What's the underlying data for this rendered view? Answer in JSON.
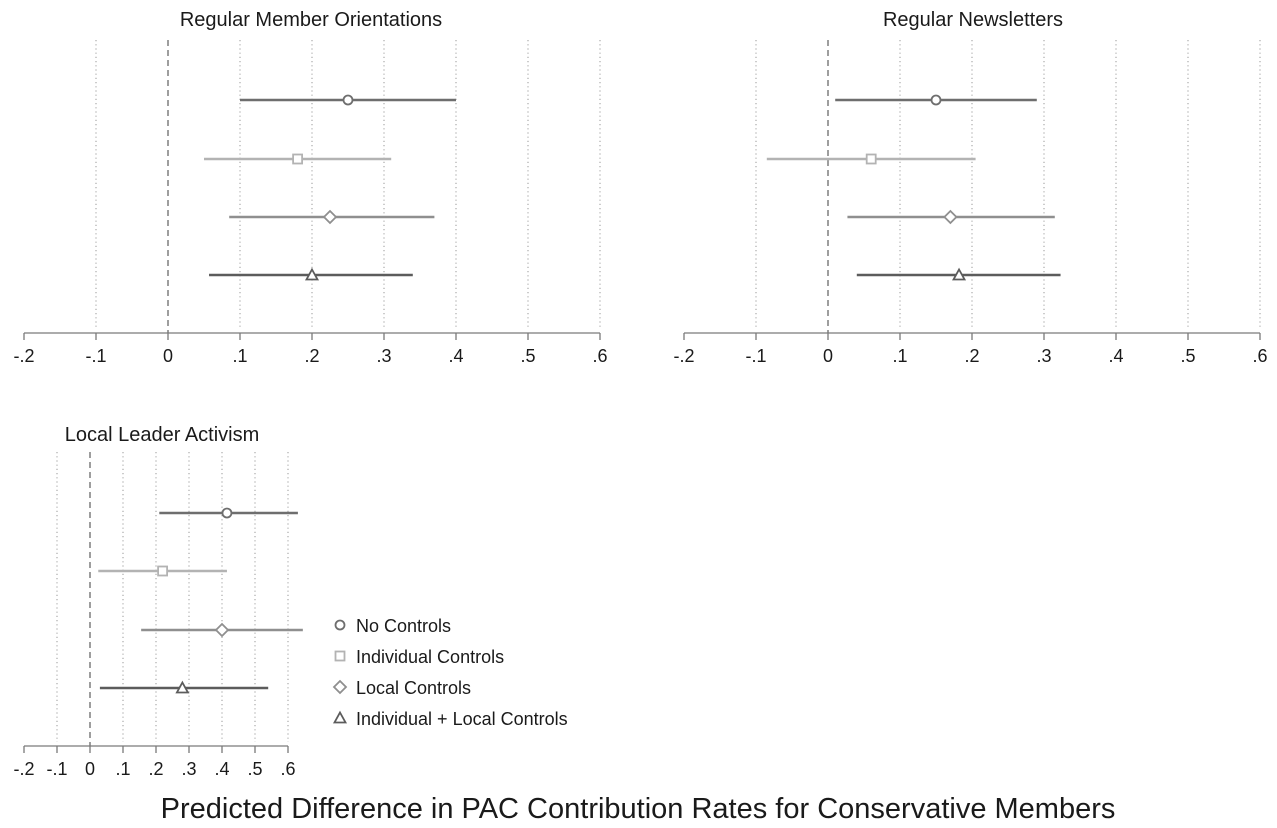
{
  "figure_title": "Predicted Difference in PAC Contribution Rates for Conservative Members",
  "legend": [
    {
      "label": "No Controls",
      "marker": "circle",
      "color": "#6e6e6e"
    },
    {
      "label": "Individual Controls",
      "marker": "square",
      "color": "#b3b3b3"
    },
    {
      "label": "Local Controls",
      "marker": "diamond",
      "color": "#8f8f8f"
    },
    {
      "label": "Individual + Local Controls",
      "marker": "triangle",
      "color": "#5c5c5c"
    }
  ],
  "chart_data": [
    {
      "type": "scatter",
      "title": "Regular Member Orientations",
      "xlim": [
        -0.2,
        0.6
      ],
      "ticks": [
        "-.2",
        "-.1",
        "0",
        ".1",
        ".2",
        ".3",
        ".4",
        ".5",
        ".6"
      ],
      "reference_line": 0,
      "grid": "vertical dotted",
      "series": [
        {
          "name": "No Controls",
          "estimate": 0.25,
          "ci": [
            0.1,
            0.4
          ]
        },
        {
          "name": "Individual Controls",
          "estimate": 0.18,
          "ci": [
            0.05,
            0.31
          ]
        },
        {
          "name": "Local Controls",
          "estimate": 0.225,
          "ci": [
            0.085,
            0.37
          ]
        },
        {
          "name": "Individual + Local Controls",
          "estimate": 0.2,
          "ci": [
            0.057,
            0.34
          ]
        }
      ]
    },
    {
      "type": "scatter",
      "title": "Regular Newsletters",
      "xlim": [
        -0.2,
        0.6
      ],
      "ticks": [
        "-.2",
        "-.1",
        "0",
        ".1",
        ".2",
        ".3",
        ".4",
        ".5",
        ".6"
      ],
      "reference_line": 0,
      "grid": "vertical dotted",
      "series": [
        {
          "name": "No Controls",
          "estimate": 0.15,
          "ci": [
            0.01,
            0.29
          ]
        },
        {
          "name": "Individual Controls",
          "estimate": 0.06,
          "ci": [
            -0.085,
            0.205
          ]
        },
        {
          "name": "Local Controls",
          "estimate": 0.17,
          "ci": [
            0.027,
            0.315
          ]
        },
        {
          "name": "Individual + Local Controls",
          "estimate": 0.182,
          "ci": [
            0.04,
            0.323
          ]
        }
      ]
    },
    {
      "type": "scatter",
      "title": "Local Leader Activism",
      "xlim": [
        -0.2,
        0.6
      ],
      "ticks": [
        "-.2",
        "-.1",
        "0",
        ".1",
        ".2",
        ".3",
        ".4",
        ".5",
        ".6"
      ],
      "reference_line": 0,
      "grid": "vertical dotted",
      "series": [
        {
          "name": "No Controls",
          "estimate": 0.415,
          "ci": [
            0.21,
            0.63
          ]
        },
        {
          "name": "Individual Controls",
          "estimate": 0.22,
          "ci": [
            0.025,
            0.415
          ]
        },
        {
          "name": "Local Controls",
          "estimate": 0.4,
          "ci": [
            0.155,
            0.645
          ]
        },
        {
          "name": "Individual + Local Controls",
          "estimate": 0.28,
          "ci": [
            0.03,
            0.54
          ]
        }
      ]
    }
  ]
}
